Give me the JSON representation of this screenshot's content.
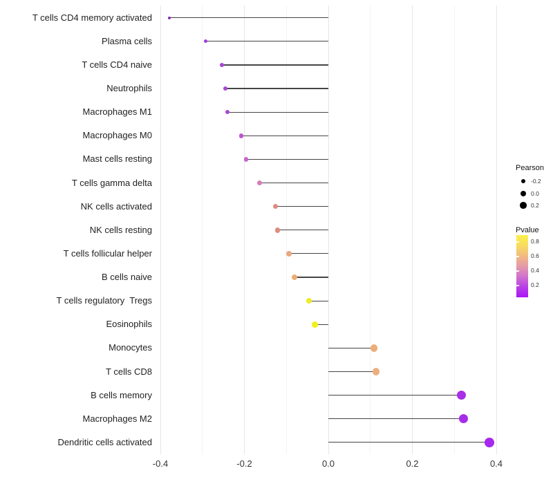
{
  "chart_data": {
    "type": "lollipop",
    "title": "",
    "xlabel": "",
    "ylabel": "",
    "x_range": [
      -0.41,
      0.44
    ],
    "x_ticks": [
      {
        "label": "-0.4",
        "value": -0.4
      },
      {
        "label": "-0.2",
        "value": -0.2
      },
      {
        "label": "0.0",
        "value": 0.0
      },
      {
        "label": "0.2",
        "value": 0.2
      },
      {
        "label": "0.4",
        "value": 0.4
      }
    ],
    "x_minor_gridlines": [
      -0.3,
      -0.1,
      0.1,
      0.3
    ],
    "points": [
      {
        "label": "T cells CD4 memory activated",
        "pearson": -0.378,
        "pvalue": 0.1,
        "color": "#8a2bb5"
      },
      {
        "label": "Plasma cells",
        "pearson": -0.292,
        "pvalue": 0.12,
        "color": "#a53bdd"
      },
      {
        "label": "T cells CD4 naive",
        "pearson": -0.254,
        "pvalue": 0.15,
        "color": "#a847d2"
      },
      {
        "label": "Neutrophils",
        "pearson": -0.245,
        "pvalue": 0.15,
        "color": "#a847d2"
      },
      {
        "label": "Macrophages M1",
        "pearson": -0.24,
        "pvalue": 0.15,
        "color": "#a94acd"
      },
      {
        "label": "Macrophages M0",
        "pearson": -0.207,
        "pvalue": 0.25,
        "color": "#bb55cd"
      },
      {
        "label": "Mast cells resting",
        "pearson": -0.196,
        "pvalue": 0.3,
        "color": "#c964c9"
      },
      {
        "label": "T cells gamma delta",
        "pearson": -0.163,
        "pvalue": 0.4,
        "color": "#d77cba"
      },
      {
        "label": "NK cells activated",
        "pearson": -0.126,
        "pvalue": 0.5,
        "color": "#df8b80"
      },
      {
        "label": "NK cells resting",
        "pearson": -0.121,
        "pvalue": 0.5,
        "color": "#df8b7d"
      },
      {
        "label": "T cells follicular helper",
        "pearson": -0.094,
        "pvalue": 0.58,
        "color": "#e9a87e"
      },
      {
        "label": "B cells naive",
        "pearson": -0.08,
        "pvalue": 0.6,
        "color": "#ebad74"
      },
      {
        "label": "T cells regulatory  Tregs",
        "pearson": -0.046,
        "pvalue": 0.8,
        "color": "#efec25"
      },
      {
        "label": "Eosinophils",
        "pearson": -0.032,
        "pvalue": 0.85,
        "color": "#f1f01c"
      },
      {
        "label": "Monocytes",
        "pearson": 0.109,
        "pvalue": 0.58,
        "color": "#ebad7a"
      },
      {
        "label": "T cells CD8",
        "pearson": 0.114,
        "pvalue": 0.58,
        "color": "#ecaf7c"
      },
      {
        "label": "B cells memory",
        "pearson": 0.317,
        "pvalue": 0.05,
        "color": "#a82fe8"
      },
      {
        "label": "Macrophages M2",
        "pearson": 0.321,
        "pvalue": 0.05,
        "color": "#a62cea"
      },
      {
        "label": "Dendritic cells activated",
        "pearson": 0.383,
        "pvalue": 0.05,
        "color": "#a728ee"
      }
    ],
    "legend_pearson": {
      "title": "Pearson",
      "entries": [
        {
          "label": "-0.2",
          "value": -0.2
        },
        {
          "label": "0.0",
          "value": 0.0
        },
        {
          "label": "0.2",
          "value": 0.2
        }
      ]
    },
    "legend_pvalue": {
      "title": "Pvalue",
      "tick_labels": [
        "0.8",
        "0.6",
        "0.4",
        "0.2"
      ],
      "gradient_colors_top_to_bottom": [
        "#faf149",
        "#f8dc60",
        "#f2ba80",
        "#e49ba8",
        "#d073ce",
        "#b93fe6",
        "#a816f4"
      ]
    },
    "styles": {
      "stem_color": "#444444",
      "grid_major": "#e6e6e6",
      "grid_minor": "#f3f3f3",
      "axis_text_color": "#333333",
      "background": "#ffffff",
      "legend_dot_color": "#000000"
    }
  }
}
